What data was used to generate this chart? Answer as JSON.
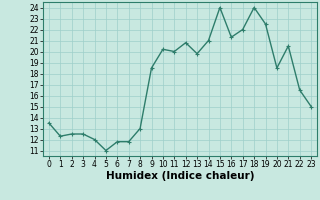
{
  "x": [
    0,
    1,
    2,
    3,
    4,
    5,
    6,
    7,
    8,
    9,
    10,
    11,
    12,
    13,
    14,
    15,
    16,
    17,
    18,
    19,
    20,
    21,
    22,
    23
  ],
  "y": [
    13.5,
    12.3,
    12.5,
    12.5,
    12.0,
    11.0,
    11.8,
    11.8,
    13.0,
    18.5,
    20.2,
    20.0,
    20.8,
    19.8,
    21.0,
    24.0,
    21.3,
    22.0,
    24.0,
    22.5,
    18.5,
    20.5,
    16.5,
    15.0
  ],
  "line_color": "#2e7d6b",
  "marker": "+",
  "marker_color": "#2e7d6b",
  "bg_color": "#c8e8e0",
  "grid_color": "#9ecfca",
  "xlabel": "Humidex (Indice chaleur)",
  "xlabel_fontsize": 7.5,
  "xlabel_fontweight": "bold",
  "xlim": [
    -0.5,
    23.5
  ],
  "ylim": [
    10.5,
    24.5
  ],
  "yticks": [
    11,
    12,
    13,
    14,
    15,
    16,
    17,
    18,
    19,
    20,
    21,
    22,
    23,
    24
  ],
  "xticks": [
    0,
    1,
    2,
    3,
    4,
    5,
    6,
    7,
    8,
    9,
    10,
    11,
    12,
    13,
    14,
    15,
    16,
    17,
    18,
    19,
    20,
    21,
    22,
    23
  ],
  "tick_fontsize": 5.5,
  "axis_color": "#2e7d6b",
  "linewidth": 1.0,
  "markersize": 3.5
}
